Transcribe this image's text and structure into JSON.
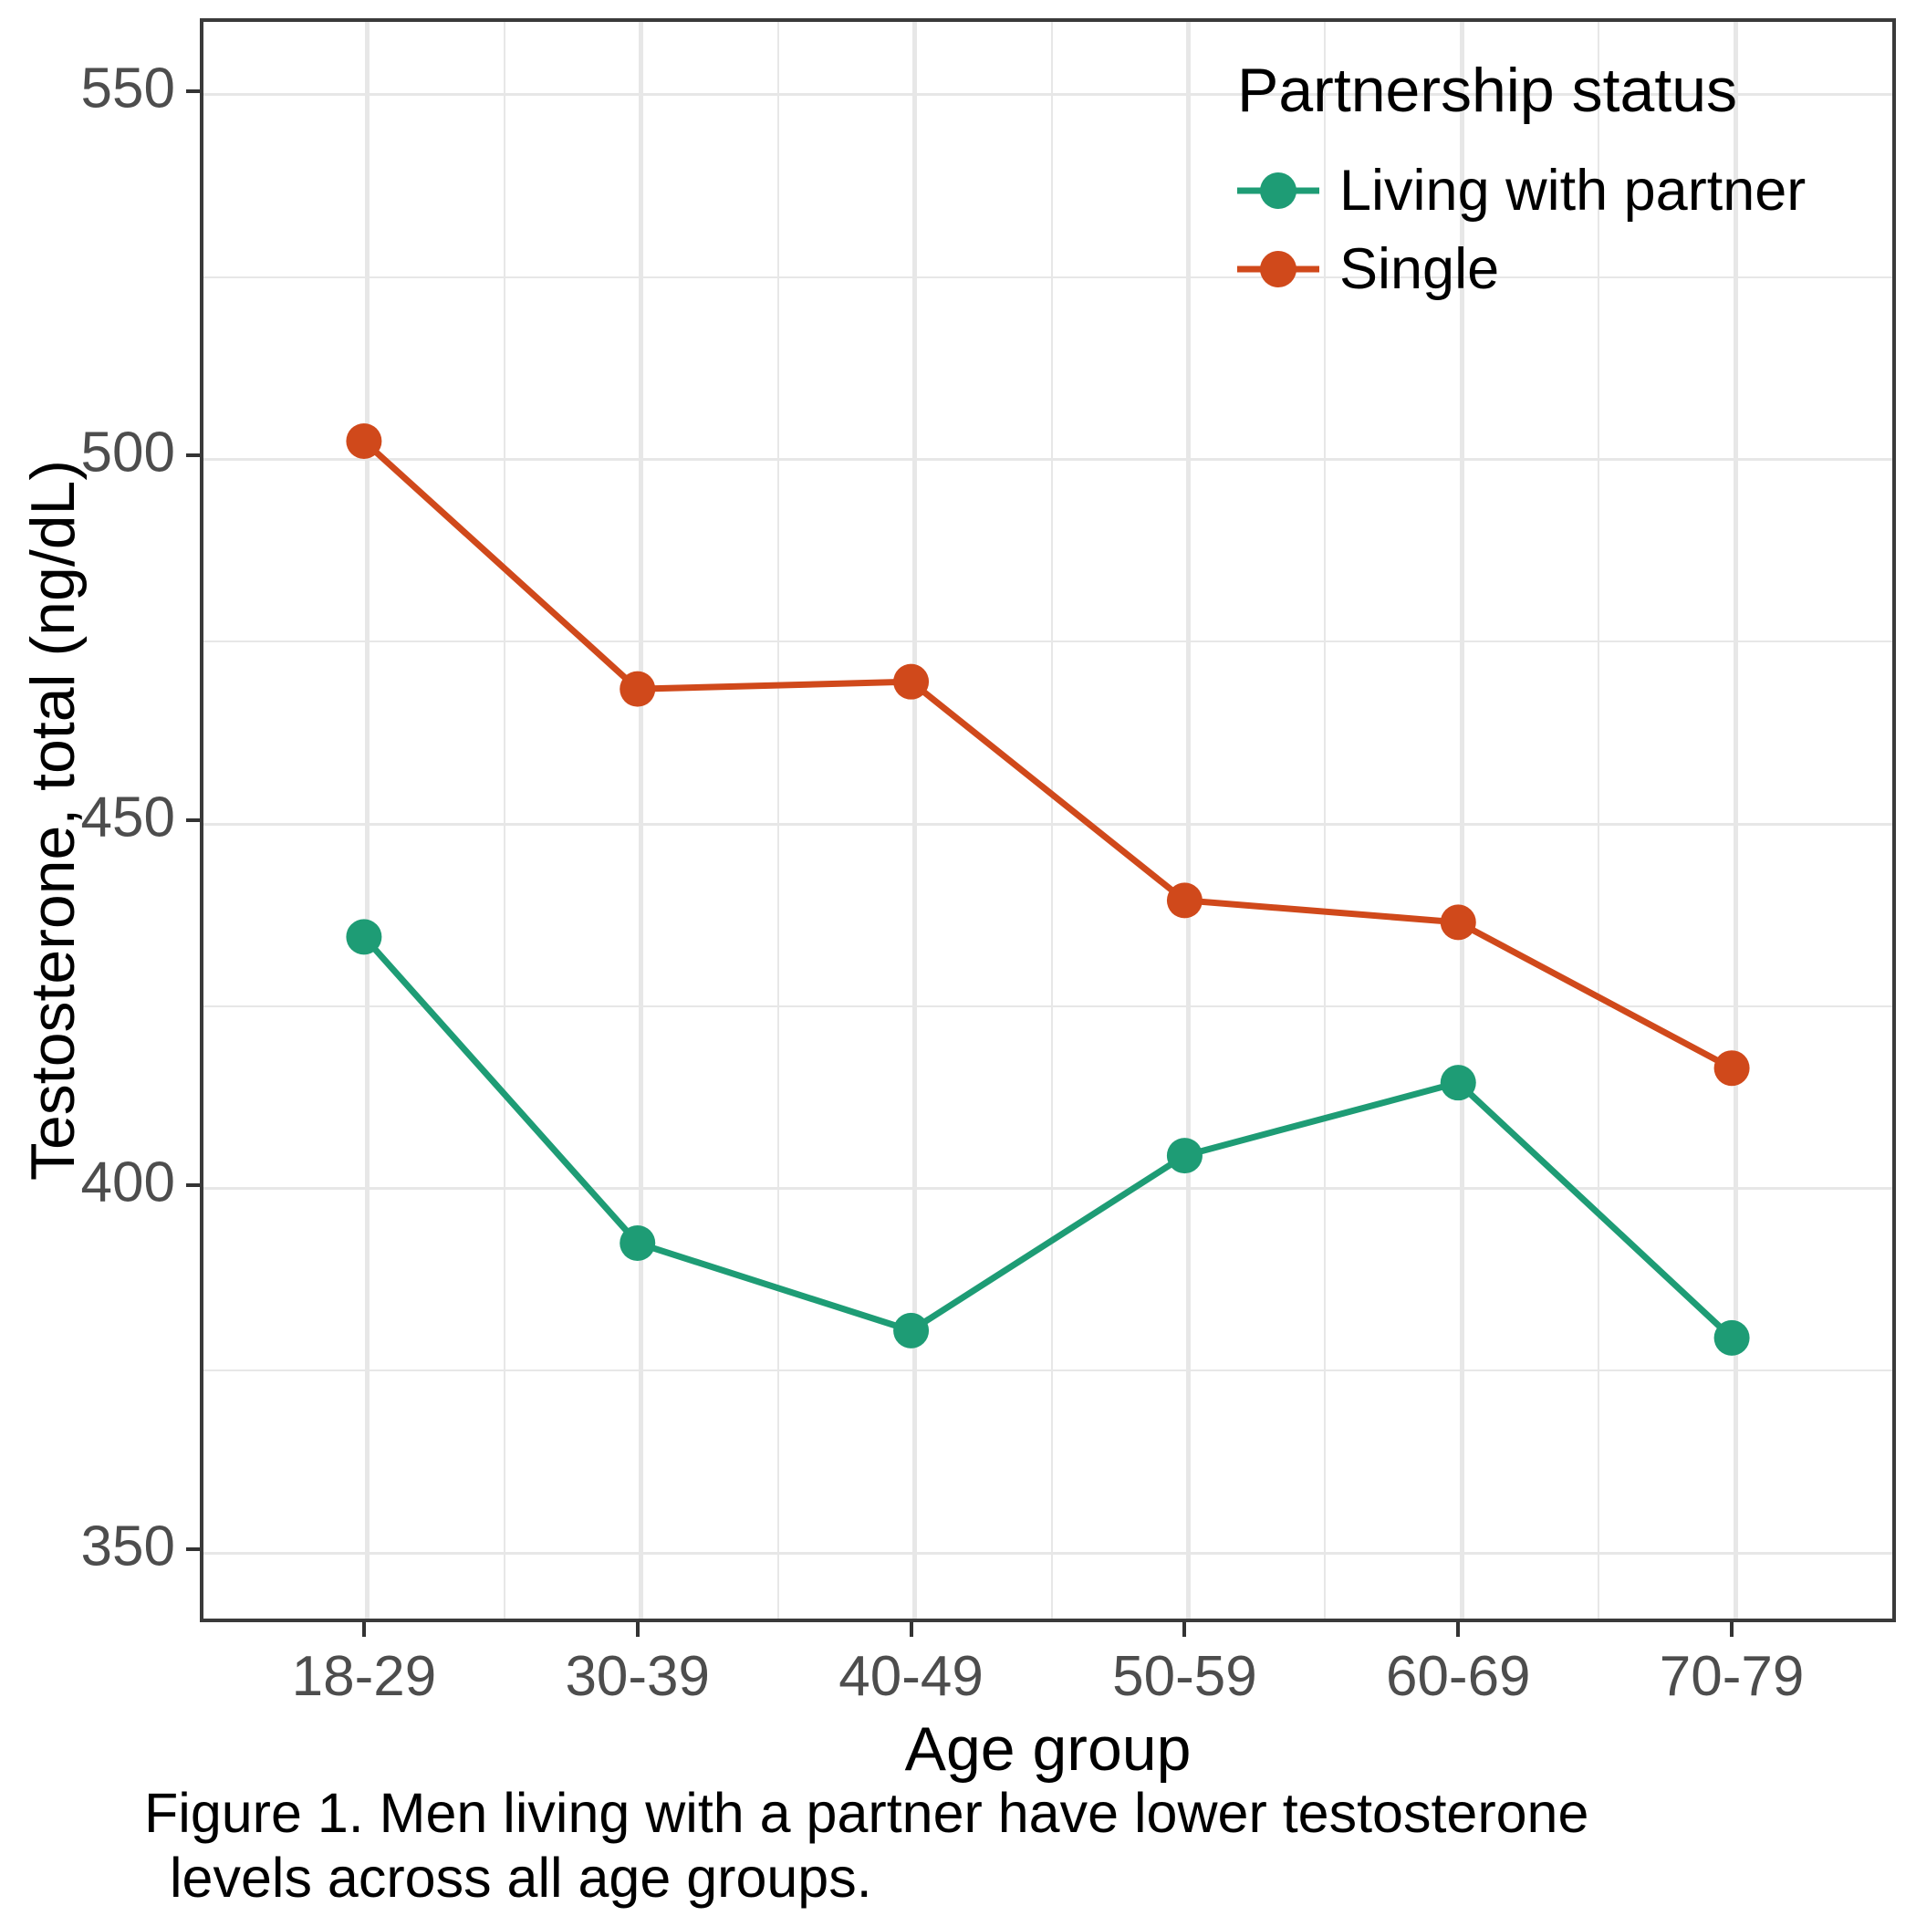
{
  "chart_data": {
    "type": "line",
    "categories": [
      "18-29",
      "30-39",
      "40-49",
      "50-59",
      "60-69",
      "70-79"
    ],
    "series": [
      {
        "name": "Living with partner",
        "color": "#1E9C75",
        "values": [
          434,
          392,
          380,
          404,
          414,
          379
        ]
      },
      {
        "name": "Single",
        "color": "#D0491B",
        "values": [
          502,
          468,
          469,
          439,
          436,
          416
        ]
      }
    ],
    "title": "",
    "xlabel": "Age group",
    "ylabel": "Testosterone, total (ng/dL)",
    "ylim": [
      340,
      560
    ],
    "y_major_ticks": [
      350,
      400,
      450,
      500,
      550
    ],
    "y_minor_ticks": [
      375,
      425,
      475,
      525
    ],
    "grid": true,
    "legend": {
      "title": "Partnership status",
      "position": "top-right-inside",
      "entries": [
        "Living with partner",
        "Single"
      ]
    }
  },
  "caption": {
    "line1": "Figure 1. Men living with a partner have lower testosterone",
    "line2": "levels across all age groups."
  },
  "colors": {
    "green_series": "#1E9C75",
    "orange_series": "#D0491B",
    "gridline": "#E7E7E7",
    "panel_border": "#3A3A3A",
    "axis_text": "#4D4D4D"
  }
}
